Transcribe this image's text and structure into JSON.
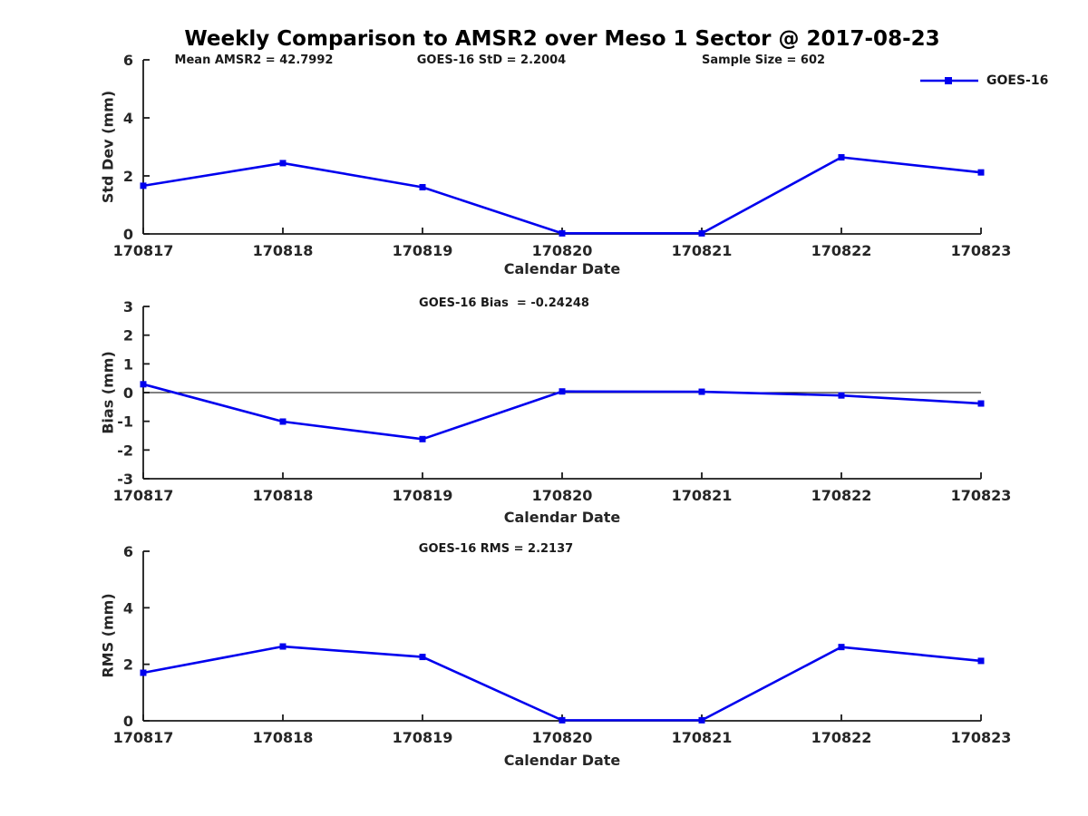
{
  "figure": {
    "title": "Weekly Comparison to AMSR2 over Meso 1 Sector @ 2017-08-23",
    "background_color": "#ffffff",
    "line_color": "#0000ee",
    "axis_color": "#1a1a1a",
    "tick_label_color": "#262626",
    "legend": {
      "label": "GOES-16",
      "position": "top-right",
      "marker": "filled-square"
    }
  },
  "chart_data": [
    {
      "id": "std-dev",
      "type": "line",
      "series_name": "GOES-16",
      "categories": [
        "170817",
        "170818",
        "170819",
        "170820",
        "170821",
        "170822",
        "170823"
      ],
      "values": [
        1.66,
        2.44,
        1.61,
        0.02,
        0.02,
        2.64,
        2.12
      ],
      "xlabel": "Calendar Date",
      "ylabel": "Std Dev (mm)",
      "ylim": [
        0,
        6
      ],
      "yticks": [
        0,
        2,
        4,
        6
      ],
      "grid": false,
      "zero_line": false,
      "annotations": [
        {
          "text": "Mean AMSR2 = 42.7992"
        },
        {
          "text": "GOES-16 StD = 2.2004"
        },
        {
          "text": "Sample Size = 602"
        }
      ]
    },
    {
      "id": "bias",
      "type": "line",
      "series_name": "GOES-16",
      "categories": [
        "170817",
        "170818",
        "170819",
        "170820",
        "170821",
        "170822",
        "170823"
      ],
      "values": [
        0.29,
        -1.01,
        -1.62,
        0.04,
        0.03,
        -0.1,
        -0.38
      ],
      "xlabel": "Calendar Date",
      "ylabel": "Bias (mm)",
      "ylim": [
        -3,
        3
      ],
      "yticks": [
        -3,
        -2,
        -1,
        0,
        1,
        2,
        3
      ],
      "grid": false,
      "zero_line": true,
      "annotations": [
        {
          "text": "GOES-16 Bias  = -0.24248"
        }
      ]
    },
    {
      "id": "rms",
      "type": "line",
      "series_name": "GOES-16",
      "categories": [
        "170817",
        "170818",
        "170819",
        "170820",
        "170821",
        "170822",
        "170823"
      ],
      "values": [
        1.7,
        2.63,
        2.26,
        0.02,
        0.02,
        2.61,
        2.12
      ],
      "xlabel": "Calendar Date",
      "ylabel": "RMS (mm)",
      "ylim": [
        0,
        6
      ],
      "yticks": [
        0,
        2,
        4,
        6
      ],
      "grid": false,
      "zero_line": false,
      "annotations": [
        {
          "text": "GOES-16 RMS = 2.2137"
        }
      ]
    }
  ]
}
